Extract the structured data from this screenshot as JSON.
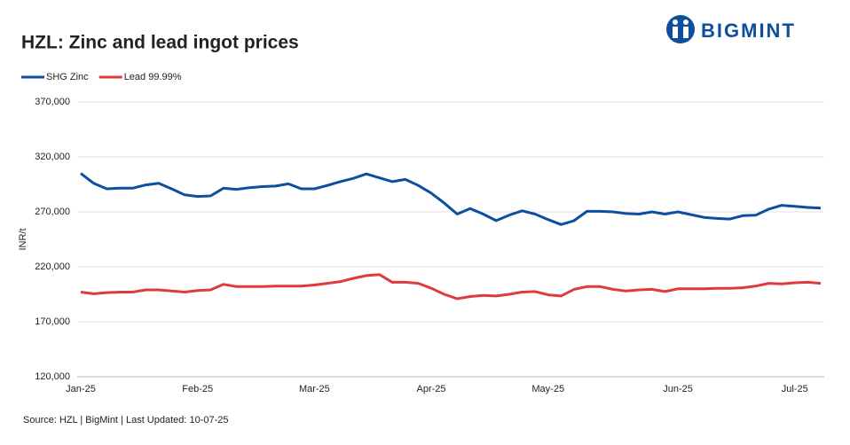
{
  "brand": "BIGMINT",
  "source": "Source: HZL | BigMint | Last Updated: 10-07-25",
  "chart_data": {
    "type": "line",
    "title": "HZL: Zinc and lead ingot prices",
    "y_label": "INR/t",
    "categories": [
      "Jan-25",
      null,
      null,
      null,
      null,
      null,
      null,
      null,
      null,
      "Feb-25",
      null,
      null,
      null,
      null,
      null,
      null,
      null,
      null,
      "Mar-25",
      null,
      null,
      null,
      null,
      null,
      null,
      null,
      null,
      "Apr-25",
      null,
      null,
      null,
      null,
      null,
      null,
      null,
      null,
      "May-25",
      null,
      null,
      null,
      null,
      null,
      null,
      null,
      null,
      null,
      "Jun-25",
      null,
      null,
      null,
      null,
      null,
      null,
      null,
      null,
      "Jul-25",
      null,
      null
    ],
    "series": [
      {
        "name": "SHG Zinc",
        "color": "#0d4f9e",
        "values": [
          305000,
          296000,
          291000,
          291500,
          291500,
          294500,
          296000,
          291000,
          285500,
          284000,
          284500,
          291500,
          290500,
          292000,
          293000,
          293500,
          295500,
          291000,
          291000,
          294000,
          297500,
          300500,
          304500,
          301000,
          297500,
          299500,
          294000,
          287000,
          278000,
          268000,
          273000,
          268000,
          262000,
          267000,
          271000,
          268000,
          263000,
          258500,
          262000,
          270500,
          270500,
          270000,
          268500,
          268000,
          270000,
          268000,
          270000,
          267500,
          265000,
          264000,
          263500,
          266500,
          267000,
          272500,
          276000,
          275000,
          274000,
          273500
        ]
      },
      {
        "name": "Lead 99.99%",
        "color": "#e03a3a",
        "values": [
          197000,
          195500,
          196500,
          197000,
          197000,
          199000,
          199000,
          198000,
          197000,
          198500,
          199000,
          204000,
          202000,
          202000,
          202000,
          202500,
          202500,
          202500,
          203500,
          205000,
          206500,
          209500,
          212000,
          213000,
          206000,
          206000,
          205000,
          200500,
          195000,
          191000,
          193000,
          194000,
          193500,
          195000,
          197000,
          197500,
          194500,
          193500,
          199500,
          202000,
          202000,
          199500,
          198000,
          199000,
          199500,
          197500,
          200000,
          200000,
          200000,
          200500,
          200500,
          201000,
          202500,
          205000,
          204500,
          205500,
          206000,
          205000
        ]
      }
    ],
    "ylim": [
      120000,
      370000
    ],
    "yticks": [
      {
        "value": 120000,
        "label": "120,000"
      },
      {
        "value": 170000,
        "label": "170,000"
      },
      {
        "value": 220000,
        "label": "220,000"
      },
      {
        "value": 270000,
        "label": "270,000"
      },
      {
        "value": 320000,
        "label": "320,000"
      },
      {
        "value": 370000,
        "label": "370,000"
      }
    ],
    "grid": true,
    "legend": "top-left"
  }
}
